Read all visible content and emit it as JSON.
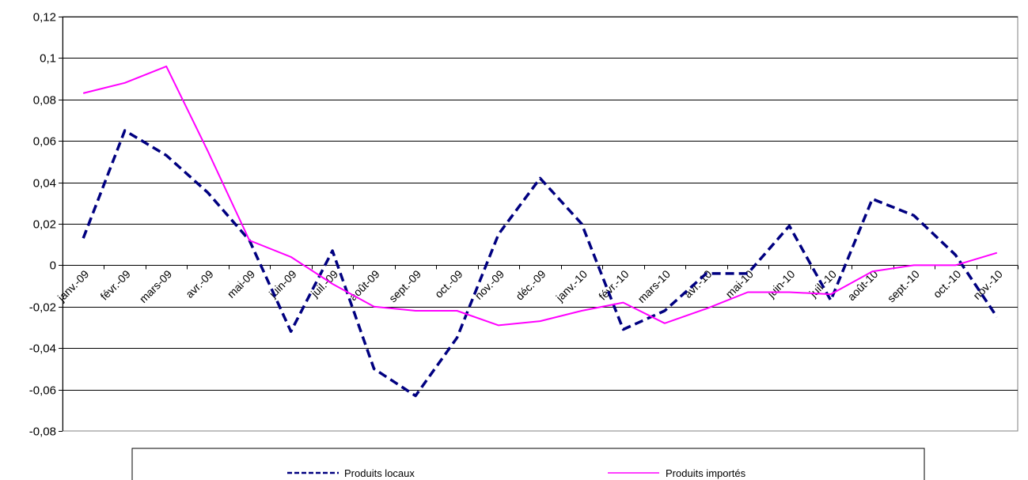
{
  "chart_data": {
    "type": "line",
    "categories": [
      "janv.-09",
      "févr.-09",
      "mars-09",
      "avr.-09",
      "mai-09",
      "juin-09",
      "juil.-09",
      "août-09",
      "sept.-09",
      "oct.-09",
      "nov.-09",
      "déc.-09",
      "janv.-10",
      "févr.-10",
      "mars-10",
      "avr.-10",
      "mai-10",
      "juin-10",
      "juil.-10",
      "août-10",
      "sept.-10",
      "oct.-10",
      "nov.-10"
    ],
    "series": [
      {
        "name": "Produits locaux",
        "color": "#000080",
        "dash": "dashed",
        "values": [
          0.013,
          0.065,
          0.053,
          0.035,
          0.012,
          -0.032,
          0.007,
          -0.05,
          -0.063,
          -0.035,
          0.015,
          0.042,
          0.02,
          -0.031,
          -0.022,
          -0.004,
          -0.004,
          0.019,
          -0.017,
          0.032,
          0.024,
          0.005,
          -0.025
        ]
      },
      {
        "name": "Produits importés",
        "color": "#ff00ff",
        "dash": "solid",
        "values": [
          0.083,
          0.088,
          0.096,
          0.055,
          0.012,
          0.004,
          -0.009,
          -0.02,
          -0.022,
          -0.022,
          -0.029,
          -0.027,
          -0.022,
          -0.018,
          -0.028,
          -0.021,
          -0.013,
          -0.013,
          -0.014,
          -0.003,
          0.0,
          0.0,
          0.006
        ]
      }
    ],
    "ylim": [
      -0.08,
      0.12
    ],
    "yticks": [
      "0,12",
      "0,1",
      "0,08",
      "0,06",
      "0,04",
      "0,02",
      "0",
      "-0,02",
      "-0,04",
      "-0,06",
      "-0,08"
    ],
    "ytick_values": [
      0.12,
      0.1,
      0.08,
      0.06,
      0.04,
      0.02,
      0,
      -0.02,
      -0.04,
      -0.06,
      -0.08
    ],
    "grid": true,
    "legend": "bottom"
  }
}
